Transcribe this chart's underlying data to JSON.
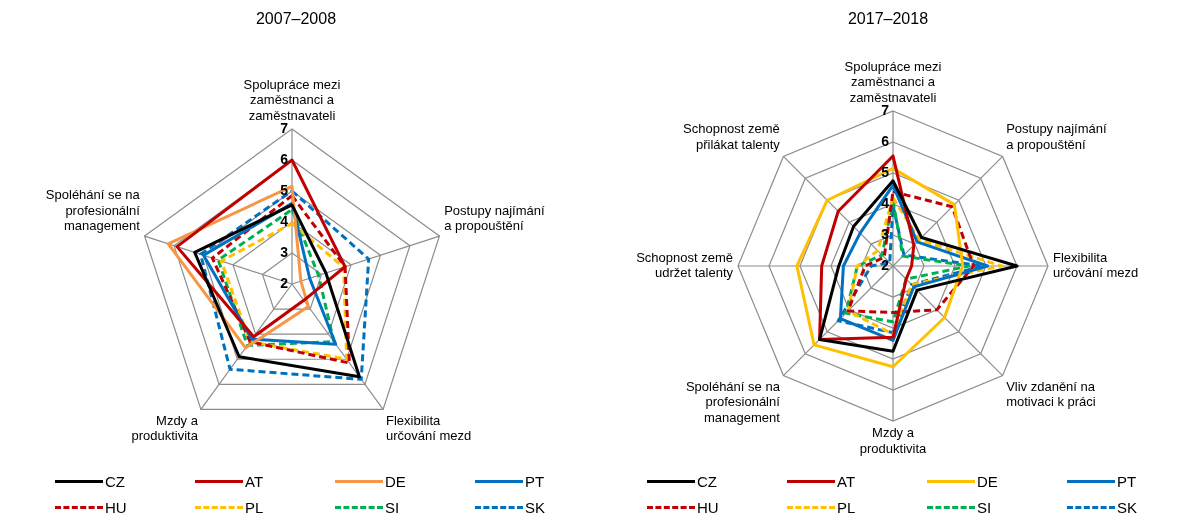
{
  "chart_data": [
    {
      "type": "radar",
      "title": "2007–2008",
      "categories": [
        "Spolupráce mezi zaměstnanci a zaměstnavateli",
        "Postupy najímání a propouštění",
        "Flexibilita určování mezd",
        "Mzdy a produktivita",
        "Spoléhání se na profesionální management"
      ],
      "ylim": [
        2,
        7
      ],
      "yticks": [
        2,
        3,
        4,
        5,
        6,
        7
      ],
      "grid": true,
      "legend": "bottom",
      "marker": "none",
      "series": [
        {
          "name": "CZ",
          "color": "#000000",
          "line_style": "solid",
          "values": [
            4.55,
            3.15,
            5.7,
            4.9,
            5.3
          ]
        },
        {
          "name": "AT",
          "color": "#c00000",
          "line_style": "solid",
          "values": [
            6.0,
            3.8,
            2.65,
            4.1,
            5.9
          ]
        },
        {
          "name": "DE",
          "color": "#f79646",
          "line_style": "solid",
          "values": [
            5.15,
            2.3,
            2.9,
            4.55,
            6.2
          ]
        },
        {
          "name": "PT",
          "color": "#0070c0",
          "line_style": "solid",
          "values": [
            4.6,
            2.6,
            4.4,
            4.2,
            5.0
          ]
        },
        {
          "name": "HU",
          "color": "#c00000",
          "line_style": "dashed",
          "values": [
            4.85,
            3.8,
            5.15,
            4.3,
            4.7
          ]
        },
        {
          "name": "PL",
          "color": "#ffc000",
          "line_style": "dashed",
          "values": [
            3.95,
            3.75,
            5.0,
            4.3,
            4.4
          ]
        },
        {
          "name": "SI",
          "color": "#00b050",
          "line_style": "dashed",
          "values": [
            4.4,
            2.9,
            4.3,
            4.45,
            4.5
          ]
        },
        {
          "name": "SK",
          "color": "#0070c0",
          "line_style": "dashed",
          "values": [
            5.0,
            4.6,
            5.8,
            5.4,
            5.1
          ]
        }
      ]
    },
    {
      "type": "radar",
      "title": "2017–2018",
      "categories": [
        "Spolupráce mezi zaměstnanci a zaměstnavateli",
        "Postupy najímání a propouštění",
        "Flexibilita určování mezd",
        "Vliv zdanění na motivaci k práci",
        "Mzdy a produktivita",
        "Spoléhání se na profesionální management",
        "Schopnost země udržet talenty",
        "Schopnost země přilákat talenty"
      ],
      "ylim": [
        2,
        7
      ],
      "yticks": [
        2,
        3,
        4,
        5,
        6,
        7
      ],
      "grid": true,
      "legend": "bottom",
      "marker": "none",
      "series": [
        {
          "name": "CZ",
          "color": "#000000",
          "line_style": "solid",
          "values": [
            4.75,
            3.3,
            6.0,
            3.1,
            4.75,
            5.35,
            3.75,
            3.8
          ]
        },
        {
          "name": "AT",
          "color": "#c00000",
          "line_style": "solid",
          "values": [
            5.55,
            2.95,
            2.6,
            2.6,
            4.3,
            5.35,
            4.3,
            4.5
          ]
        },
        {
          "name": "DE",
          "color": "#ffc000",
          "line_style": "solid",
          "values": [
            5.15,
            4.8,
            4.25,
            4.35,
            5.25,
            5.6,
            5.1,
            5.0
          ]
        },
        {
          "name": "PT",
          "color": "#0070c0",
          "line_style": "solid",
          "values": [
            4.6,
            3.1,
            5.05,
            2.95,
            4.4,
            4.4,
            3.6,
            3.5
          ]
        },
        {
          "name": "HU",
          "color": "#c00000",
          "line_style": "dashed",
          "values": [
            4.4,
            4.7,
            4.6,
            4.0,
            3.5,
            4.05,
            2.9,
            2.4
          ]
        },
        {
          "name": "PL",
          "color": "#ffc000",
          "line_style": "dashed",
          "values": [
            4.2,
            3.2,
            5.5,
            2.85,
            4.2,
            4.05,
            3.15,
            2.7
          ]
        },
        {
          "name": "SI",
          "color": "#00b050",
          "line_style": "dashed",
          "values": [
            4.1,
            2.45,
            4.45,
            2.6,
            3.8,
            4.15,
            3.15,
            2.5
          ]
        },
        {
          "name": "SK",
          "color": "#0070c0",
          "line_style": "dashed",
          "values": [
            3.95,
            2.5,
            4.9,
            2.85,
            4.15,
            4.5,
            2.7,
            2.15
          ]
        }
      ]
    }
  ]
}
